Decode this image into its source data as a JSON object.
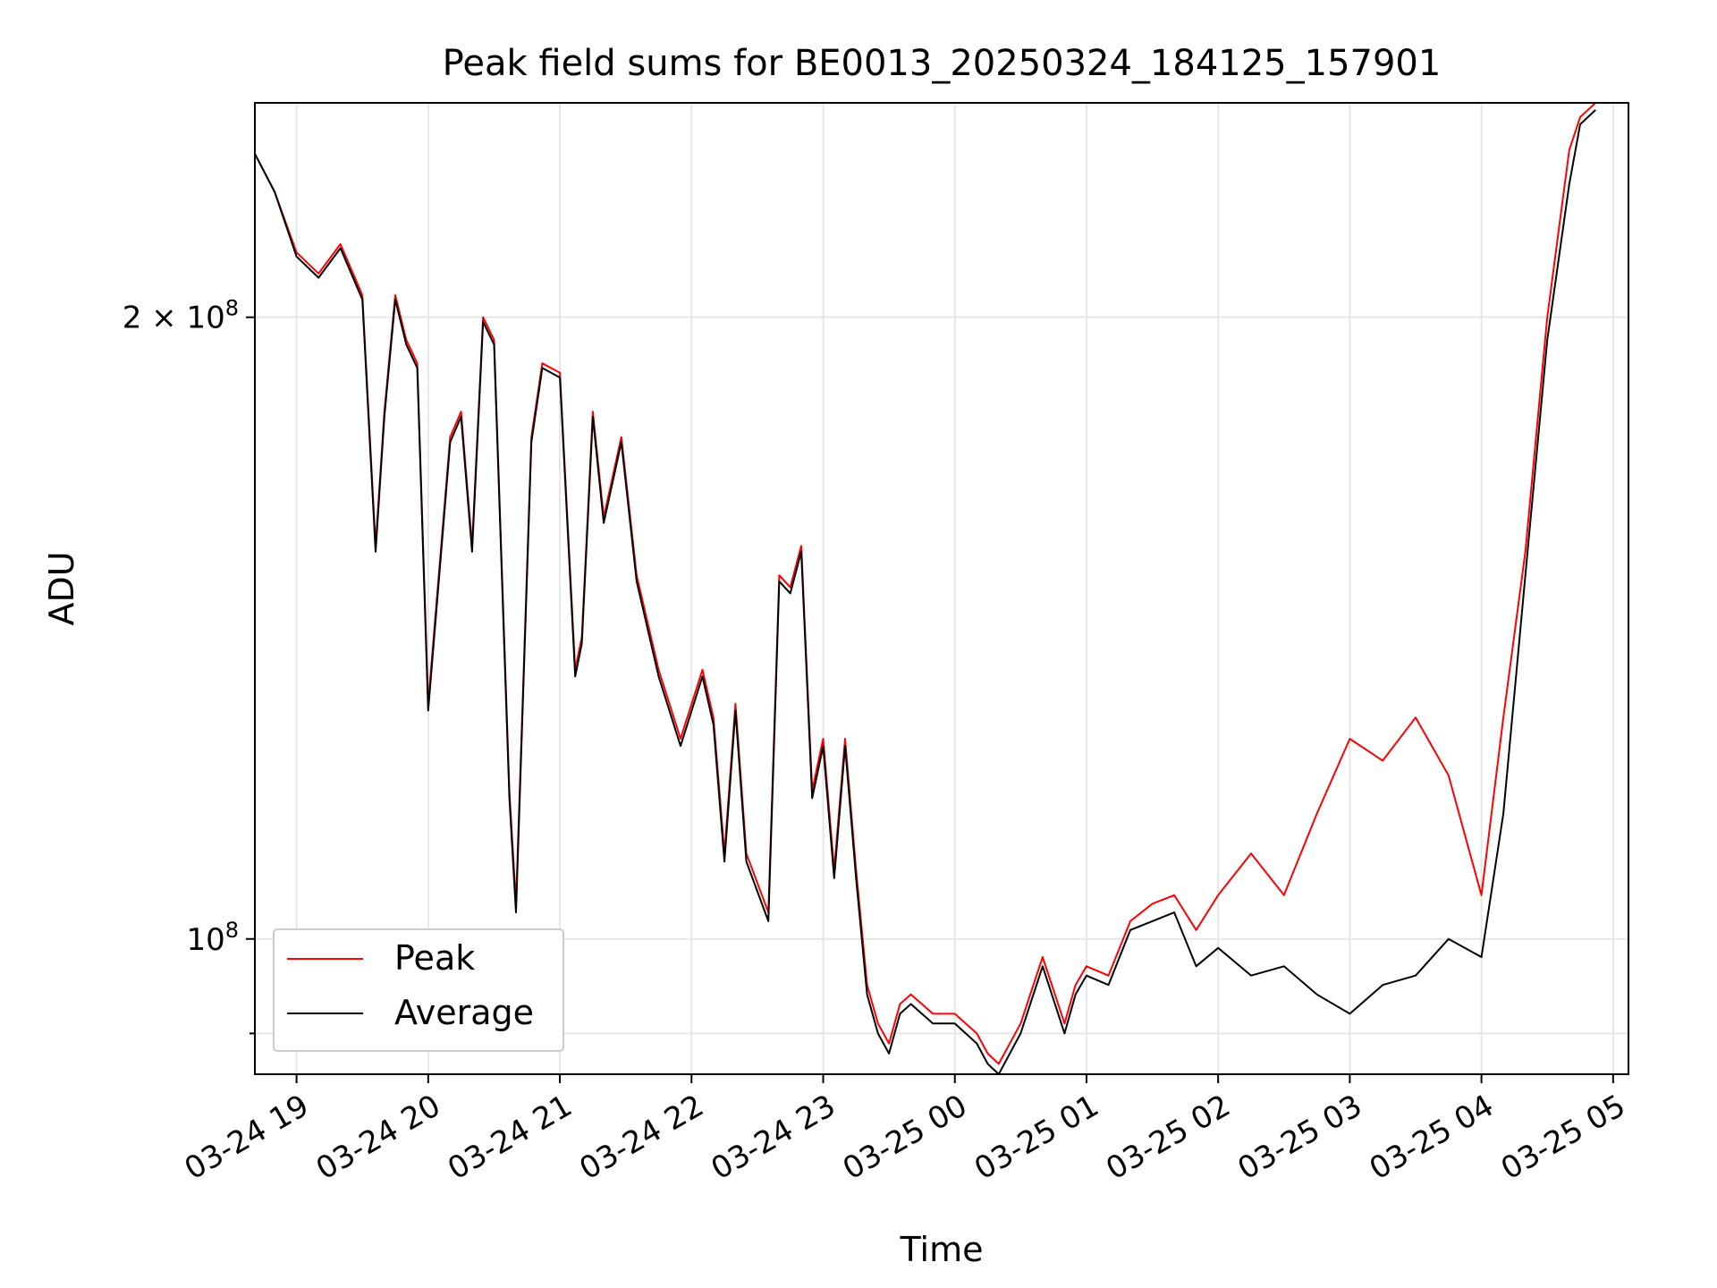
{
  "chart_data": {
    "type": "line",
    "title": "Peak field sums for BE0013_20250324_184125_157901",
    "xlabel": "Time",
    "ylabel": "ADU",
    "xlim": [
      "2025-03-24 18:41",
      "2025-03-25 05:07"
    ],
    "ylim": [
      86000000,
      254000000
    ],
    "yscale": "log",
    "grid": true,
    "legend_position": "lower-left",
    "x_ticks": [
      "03-24 19",
      "03-24 20",
      "03-24 21",
      "03-24 22",
      "03-24 23",
      "03-25 00",
      "03-25 01",
      "03-25 02",
      "03-25 03",
      "03-25 04",
      "03-25 05"
    ],
    "y_major_ticks": [
      {
        "value": 100000000,
        "label_base": "10",
        "label_exp": "8"
      },
      {
        "value": 200000000,
        "label_base": "2 × 10",
        "label_exp": "8"
      }
    ],
    "y_minor_ticks": [
      90000000
    ],
    "x": [
      "2025-03-24 18:41",
      "2025-03-24 18:50",
      "2025-03-24 19:00",
      "2025-03-24 19:10",
      "2025-03-24 19:20",
      "2025-03-24 19:30",
      "2025-03-24 19:36",
      "2025-03-24 19:40",
      "2025-03-24 19:45",
      "2025-03-24 19:50",
      "2025-03-24 19:55",
      "2025-03-24 20:00",
      "2025-03-24 20:10",
      "2025-03-24 20:15",
      "2025-03-24 20:20",
      "2025-03-24 20:25",
      "2025-03-24 20:30",
      "2025-03-24 20:37",
      "2025-03-24 20:40",
      "2025-03-24 20:47",
      "2025-03-24 20:52",
      "2025-03-24 21:00",
      "2025-03-24 21:07",
      "2025-03-24 21:10",
      "2025-03-24 21:15",
      "2025-03-24 21:20",
      "2025-03-24 21:28",
      "2025-03-24 21:35",
      "2025-03-24 21:45",
      "2025-03-24 21:55",
      "2025-03-24 22:05",
      "2025-03-24 22:10",
      "2025-03-24 22:15",
      "2025-03-24 22:20",
      "2025-03-24 22:25",
      "2025-03-24 22:35",
      "2025-03-24 22:40",
      "2025-03-24 22:45",
      "2025-03-24 22:50",
      "2025-03-24 22:55",
      "2025-03-24 23:00",
      "2025-03-24 23:05",
      "2025-03-24 23:10",
      "2025-03-24 23:15",
      "2025-03-24 23:20",
      "2025-03-24 23:25",
      "2025-03-24 23:30",
      "2025-03-24 23:35",
      "2025-03-24 23:40",
      "2025-03-24 23:50",
      "2025-03-25 00:00",
      "2025-03-25 00:10",
      "2025-03-25 00:15",
      "2025-03-25 00:20",
      "2025-03-25 00:30",
      "2025-03-25 00:40",
      "2025-03-25 00:50",
      "2025-03-25 00:55",
      "2025-03-25 01:00",
      "2025-03-25 01:10",
      "2025-03-25 01:20",
      "2025-03-25 01:30",
      "2025-03-25 01:40",
      "2025-03-25 01:50",
      "2025-03-25 02:00",
      "2025-03-25 02:15",
      "2025-03-25 02:30",
      "2025-03-25 02:45",
      "2025-03-25 03:00",
      "2025-03-25 03:15",
      "2025-03-25 03:30",
      "2025-03-25 03:45",
      "2025-03-25 04:00",
      "2025-03-25 04:10",
      "2025-03-25 04:20",
      "2025-03-25 04:30",
      "2025-03-25 04:40",
      "2025-03-25 04:45",
      "2025-03-25 04:52"
    ],
    "series": [
      {
        "name": "Peak",
        "color": "#ff0000",
        "values": [
          240000000,
          230000000,
          215000000,
          210000000,
          217000000,
          205000000,
          155000000,
          180000000,
          205000000,
          195000000,
          190000000,
          130000000,
          175000000,
          180000000,
          155000000,
          200000000,
          195000000,
          118000000,
          104000000,
          175000000,
          190000000,
          188000000,
          135000000,
          140000000,
          180000000,
          160000000,
          175000000,
          150000000,
          135000000,
          125000000,
          135000000,
          128000000,
          110000000,
          130000000,
          110000000,
          103000000,
          150000000,
          148000000,
          155000000,
          118000000,
          125000000,
          108000000,
          125000000,
          108000000,
          95000000,
          91000000,
          89000000,
          93000000,
          94000000,
          92000000,
          92000000,
          90000000,
          88000000,
          87000000,
          91000000,
          98000000,
          91000000,
          95000000,
          97000000,
          96000000,
          102000000,
          104000000,
          105000000,
          101000000,
          105000000,
          110000000,
          105000000,
          115000000,
          125000000,
          122000000,
          128000000,
          120000000,
          105000000,
          128000000,
          154000000,
          200000000,
          241000000,
          250000000,
          254000000
        ]
      },
      {
        "name": "Average",
        "color": "#000000",
        "values": [
          240000000,
          230000000,
          214000000,
          209000000,
          216000000,
          204000000,
          154000000,
          179000000,
          204000000,
          194000000,
          189000000,
          129000000,
          174000000,
          179000000,
          154000000,
          199000000,
          194000000,
          117000000,
          103000000,
          174000000,
          189000000,
          187000000,
          134000000,
          139000000,
          179000000,
          159000000,
          174000000,
          149000000,
          134000000,
          124000000,
          134000000,
          127000000,
          109000000,
          129000000,
          109000000,
          102000000,
          149000000,
          147000000,
          154000000,
          117000000,
          124000000,
          107000000,
          124000000,
          107000000,
          94000000,
          90000000,
          88000000,
          92000000,
          93000000,
          91000000,
          91000000,
          89000000,
          87000000,
          86000000,
          90000000,
          97000000,
          90000000,
          94000000,
          96000000,
          95000000,
          101000000,
          102000000,
          103000000,
          97000000,
          99000000,
          96000000,
          97000000,
          94000000,
          92000000,
          95000000,
          96000000,
          100000000,
          98000000,
          115000000,
          150000000,
          195000000,
          232000000,
          248000000,
          252000000
        ]
      }
    ]
  }
}
